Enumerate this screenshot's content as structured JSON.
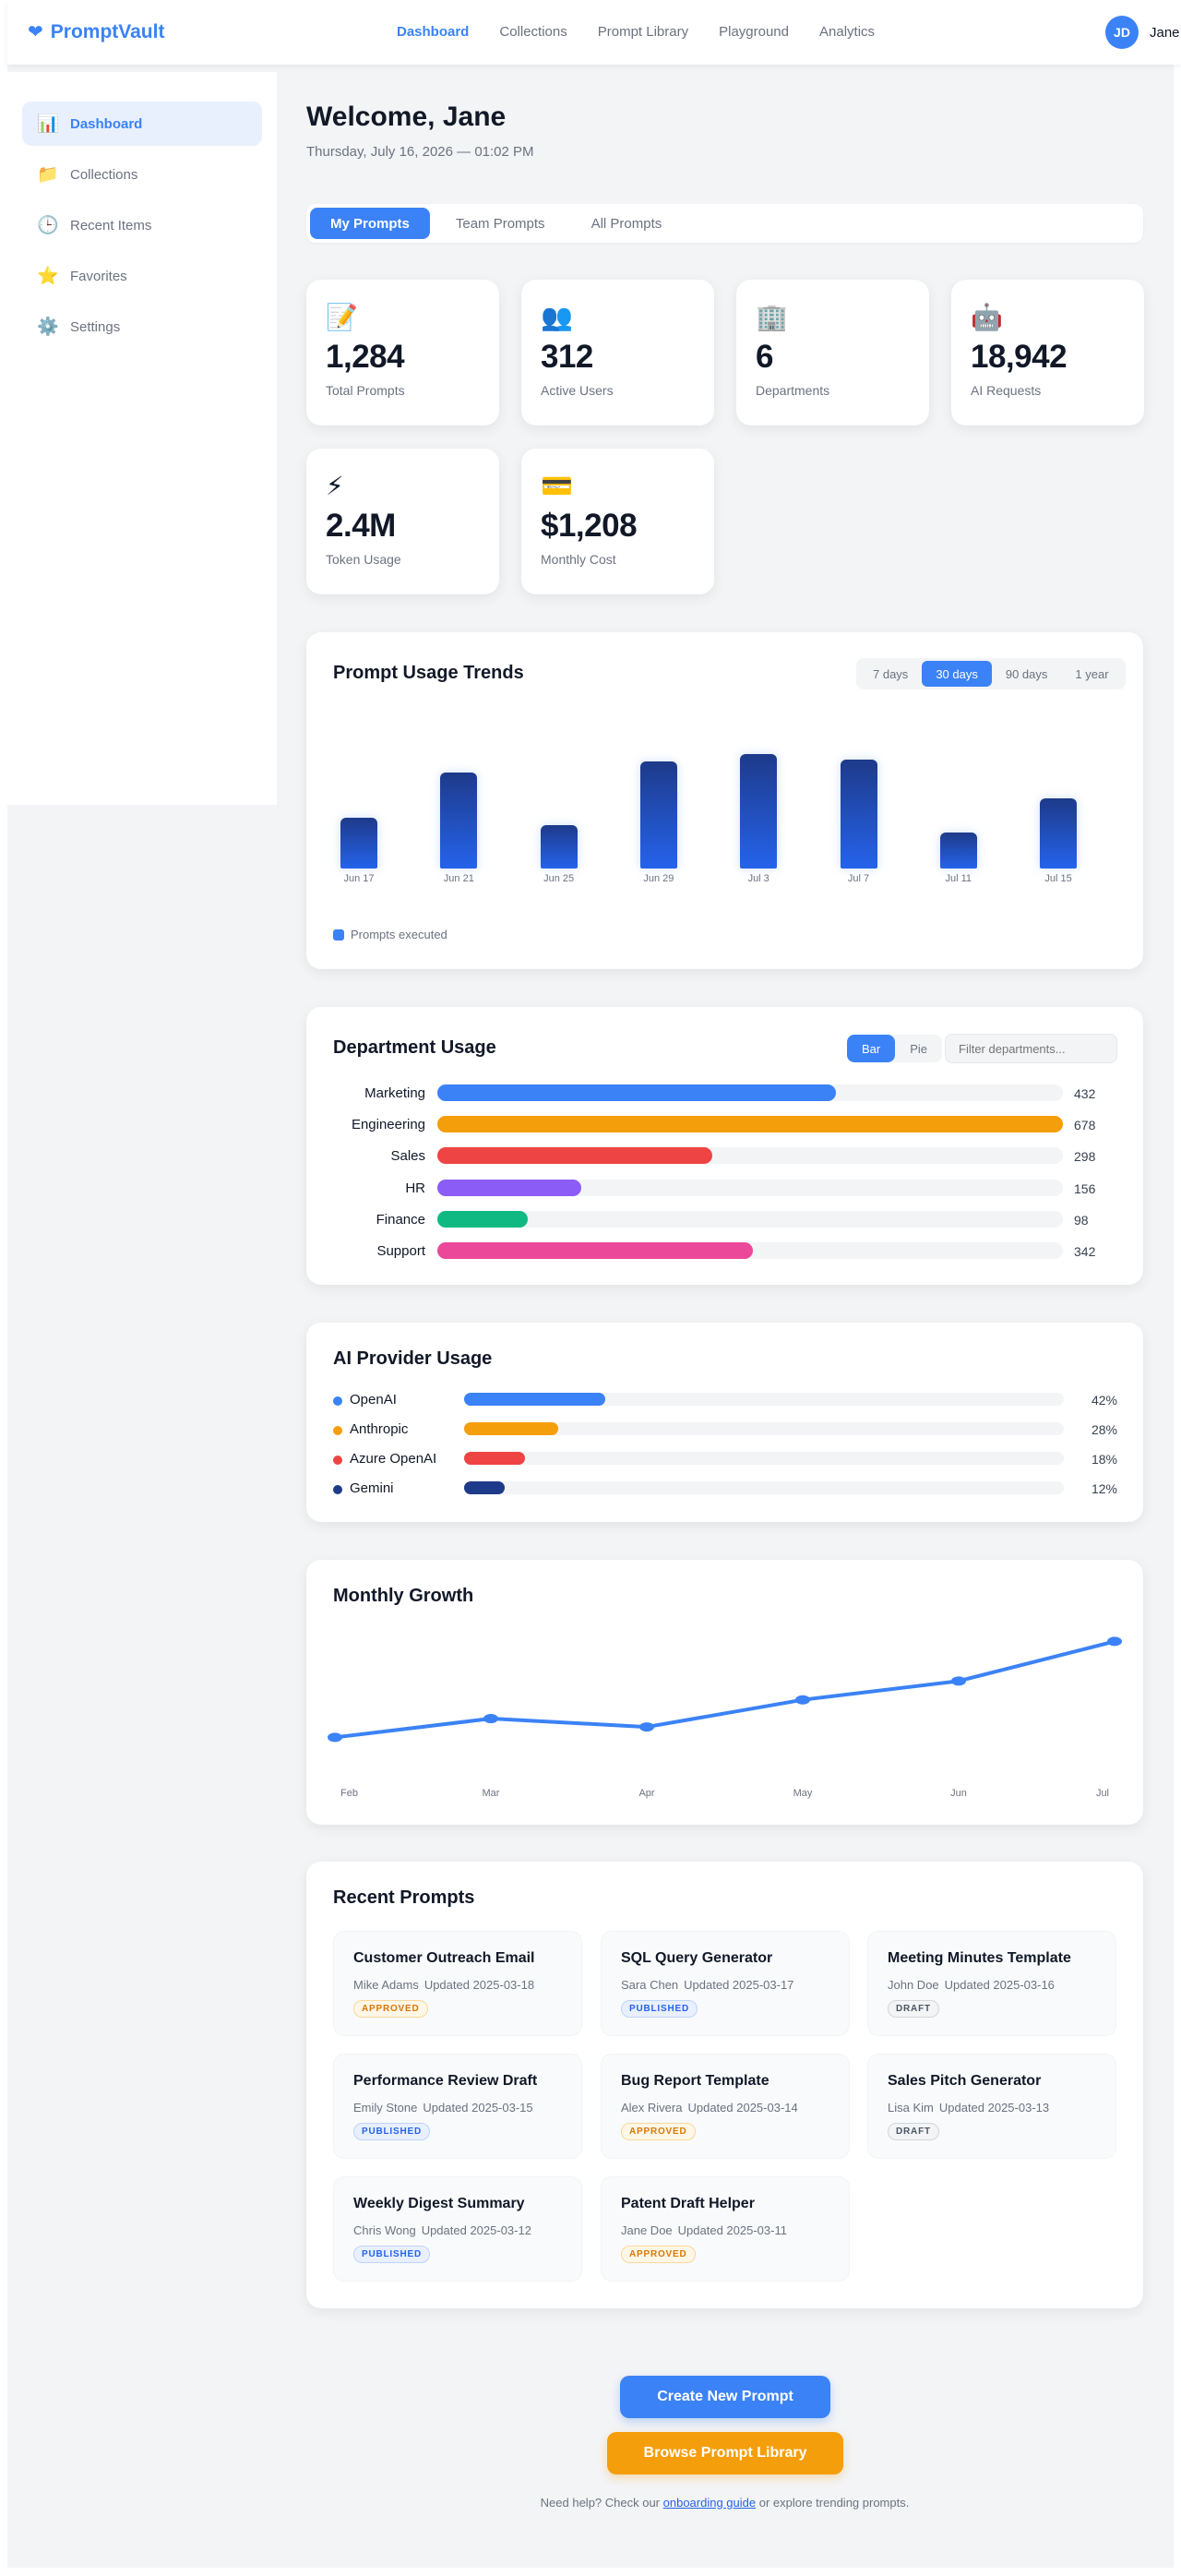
{
  "header": {
    "brand": "PromptVault",
    "nav": [
      "Dashboard",
      "Collections",
      "Prompt Library",
      "Playground",
      "Analytics"
    ],
    "active_nav": "Dashboard",
    "user": {
      "initials": "JD",
      "name": "Jane"
    }
  },
  "sidebar": {
    "items": [
      {
        "label": "Dashboard",
        "icon": "chart-icon",
        "glyph": "📊",
        "active": true
      },
      {
        "label": "Collections",
        "icon": "folder-icon",
        "glyph": "📁",
        "active": false
      },
      {
        "label": "Recent Items",
        "icon": "clock-icon",
        "glyph": "🕒",
        "active": false
      },
      {
        "label": "Favorites",
        "icon": "star-icon",
        "glyph": "⭐",
        "active": false
      },
      {
        "label": "Settings",
        "icon": "gear-icon",
        "glyph": "⚙️",
        "active": false
      }
    ]
  },
  "welcome": {
    "title": "Welcome, Jane",
    "date": "Thursday, July 16, 2026 — 01:02 PM"
  },
  "tabs": [
    "My Prompts",
    "Team Prompts",
    "All Prompts"
  ],
  "stats": [
    {
      "glyph": "📝",
      "icon": "memo-icon",
      "value": "1,284",
      "label": "Total Prompts"
    },
    {
      "glyph": "👥",
      "icon": "users-icon",
      "value": "312",
      "label": "Active Users"
    },
    {
      "glyph": "🏢",
      "icon": "building-icon",
      "value": "6",
      "label": "Departments"
    },
    {
      "glyph": "🤖",
      "icon": "robot-icon",
      "value": "18,942",
      "label": "AI Requests"
    },
    {
      "glyph": "⚡",
      "icon": "lightning-icon",
      "value": "2.4M",
      "label": "Token Usage"
    },
    {
      "glyph": "💳",
      "icon": "credit-card-icon",
      "value": "$1,208",
      "label": "Monthly Cost"
    }
  ],
  "usage_trends": {
    "title": "Prompt Usage Trends",
    "ranges": [
      "7 days",
      "30 days",
      "90 days",
      "1 year"
    ],
    "active_range": "30 days",
    "legend": "Prompts executed",
    "color": "#3b82f6"
  },
  "department_usage": {
    "title": "Department Usage",
    "views": [
      "Bar",
      "Pie"
    ],
    "active_view": "Bar",
    "filter_placeholder": "Filter departments...",
    "max": 678,
    "rows": [
      {
        "name": "Marketing",
        "value": 432,
        "color": "#3b82f6"
      },
      {
        "name": "Engineering",
        "value": 678,
        "color": "#f59e0b"
      },
      {
        "name": "Sales",
        "value": 298,
        "color": "#ef4444"
      },
      {
        "name": "HR",
        "value": 156,
        "color": "#8b5cf6"
      },
      {
        "name": "Finance",
        "value": 98,
        "color": "#10b981"
      },
      {
        "name": "Support",
        "value": 342,
        "color": "#ec4899"
      }
    ]
  },
  "providers": {
    "title": "AI Provider Usage",
    "rows": [
      {
        "name": "OpenAI",
        "percent": 42,
        "label": "42%",
        "color": "#3b82f6"
      },
      {
        "name": "Anthropic",
        "percent": 28,
        "label": "28%",
        "color": "#f59e0b"
      },
      {
        "name": "Azure OpenAI",
        "percent": 18,
        "label": "18%",
        "color": "#ef4444"
      },
      {
        "name": "Gemini",
        "percent": 12,
        "label": "12%",
        "color": "#1e3a8a"
      }
    ]
  },
  "monthly_growth": {
    "title": "Monthly Growth",
    "color": "#3b82f6"
  },
  "chart_data": [
    {
      "type": "bar",
      "categories": [
        "Jun 17",
        "Jun 21",
        "Jun 25",
        "Jun 29",
        "Jul 3",
        "Jul 7",
        "Jul 11",
        "Jul 15"
      ],
      "series": [
        {
          "name": "Prompts executed",
          "values": [
            55,
            104,
            47,
            116,
            124,
            118,
            39,
            76
          ]
        }
      ],
      "ylim": [
        0,
        130
      ]
    },
    {
      "type": "line",
      "x": [
        "Feb",
        "Mar",
        "Apr",
        "May",
        "Jun",
        "Jul"
      ],
      "values": [
        20,
        38,
        30,
        56,
        74,
        112
      ],
      "ylim": [
        0,
        115
      ]
    }
  ],
  "recent_prompts": {
    "title": "Recent Prompts",
    "items": [
      {
        "title": "Customer Outreach Email",
        "author": "Mike Adams",
        "updated": "Updated 2025-03-18",
        "status": "APPROVED"
      },
      {
        "title": "SQL Query Generator",
        "author": "Sara Chen",
        "updated": "Updated 2025-03-17",
        "status": "PUBLISHED"
      },
      {
        "title": "Meeting Minutes Template",
        "author": "John Doe",
        "updated": "Updated 2025-03-16",
        "status": "DRAFT"
      },
      {
        "title": "Performance Review Draft",
        "author": "Emily Stone",
        "updated": "Updated 2025-03-15",
        "status": "PUBLISHED"
      },
      {
        "title": "Bug Report Template",
        "author": "Alex Rivera",
        "updated": "Updated 2025-03-14",
        "status": "APPROVED"
      },
      {
        "title": "Sales Pitch Generator",
        "author": "Lisa Kim",
        "updated": "Updated 2025-03-13",
        "status": "DRAFT"
      },
      {
        "title": "Weekly Digest Summary",
        "author": "Chris Wong",
        "updated": "Updated 2025-03-12",
        "status": "PUBLISHED"
      },
      {
        "title": "Patent Draft Helper",
        "author": "Jane Doe",
        "updated": "Updated 2025-03-11",
        "status": "APPROVED"
      }
    ]
  },
  "actions": {
    "create": "Create New Prompt",
    "browse": "Browse Prompt Library"
  },
  "help": {
    "before": "Need help? Check our",
    "link": "onboarding guide",
    "after": "or explore trending prompts."
  }
}
